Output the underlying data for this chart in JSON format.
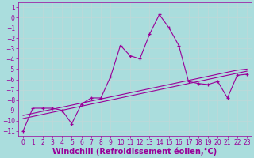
{
  "xlabel": "Windchill (Refroidissement éolien,°C)",
  "x_values": [
    0,
    1,
    2,
    3,
    4,
    5,
    6,
    7,
    8,
    9,
    10,
    11,
    12,
    13,
    14,
    15,
    16,
    17,
    18,
    19,
    20,
    21,
    22,
    23
  ],
  "y_line": [
    -11.0,
    -8.8,
    -8.8,
    -8.8,
    -9.0,
    -10.3,
    -8.4,
    -7.8,
    -7.8,
    -5.7,
    -2.7,
    -3.7,
    -4.0,
    -1.6,
    0.3,
    -1.0,
    -2.7,
    -6.2,
    -6.4,
    -6.5,
    -6.2,
    -7.8,
    -5.6,
    -5.5
  ],
  "y_trend1": [
    -9.5,
    -9.3,
    -9.1,
    -8.9,
    -8.7,
    -8.5,
    -8.3,
    -8.1,
    -7.9,
    -7.7,
    -7.5,
    -7.3,
    -7.1,
    -6.9,
    -6.7,
    -6.5,
    -6.3,
    -6.1,
    -5.9,
    -5.7,
    -5.5,
    -5.3,
    -5.1,
    -5.0
  ],
  "y_trend2": [
    -9.8,
    -9.6,
    -9.4,
    -9.2,
    -9.0,
    -8.8,
    -8.6,
    -8.4,
    -8.2,
    -8.0,
    -7.8,
    -7.6,
    -7.4,
    -7.2,
    -7.0,
    -6.8,
    -6.6,
    -6.4,
    -6.2,
    -6.0,
    -5.8,
    -5.6,
    -5.4,
    -5.2
  ],
  "line_color": "#990099",
  "trend_color": "#990099",
  "bg_color": "#aadddd",
  "grid_color": "#c0d8d8",
  "ylim": [
    -11.5,
    1.5
  ],
  "xlim": [
    -0.5,
    23.5
  ],
  "yticks": [
    1,
    0,
    -1,
    -2,
    -3,
    -4,
    -5,
    -6,
    -7,
    -8,
    -9,
    -10,
    -11
  ],
  "xticks": [
    0,
    1,
    2,
    3,
    4,
    5,
    6,
    7,
    8,
    9,
    10,
    11,
    12,
    13,
    14,
    15,
    16,
    17,
    18,
    19,
    20,
    21,
    22,
    23
  ],
  "tick_fontsize": 5.5,
  "xlabel_fontsize": 7.0,
  "marker": "+"
}
